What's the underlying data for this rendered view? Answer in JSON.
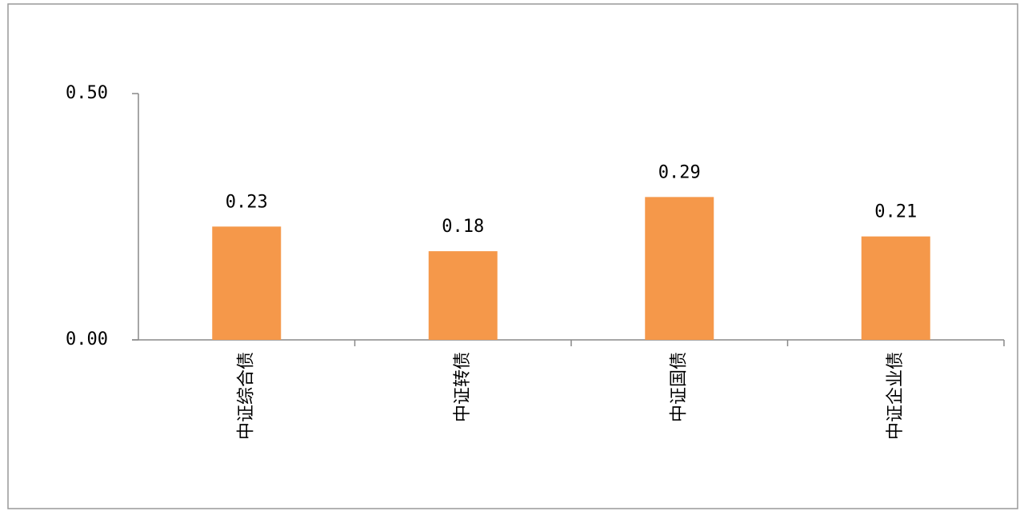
{
  "chart_data": {
    "type": "bar",
    "categories": [
      "中证综合债",
      "中证转债",
      "中证国债",
      "中证企业债"
    ],
    "values": [
      0.23,
      0.18,
      0.29,
      0.21
    ],
    "color": "#f5984a",
    "ylim": [
      0,
      0.5
    ],
    "yticks": [
      {
        "value": 0,
        "label": "0.00"
      },
      {
        "value": 0.5,
        "label": "0.50"
      }
    ],
    "grid": false
  }
}
